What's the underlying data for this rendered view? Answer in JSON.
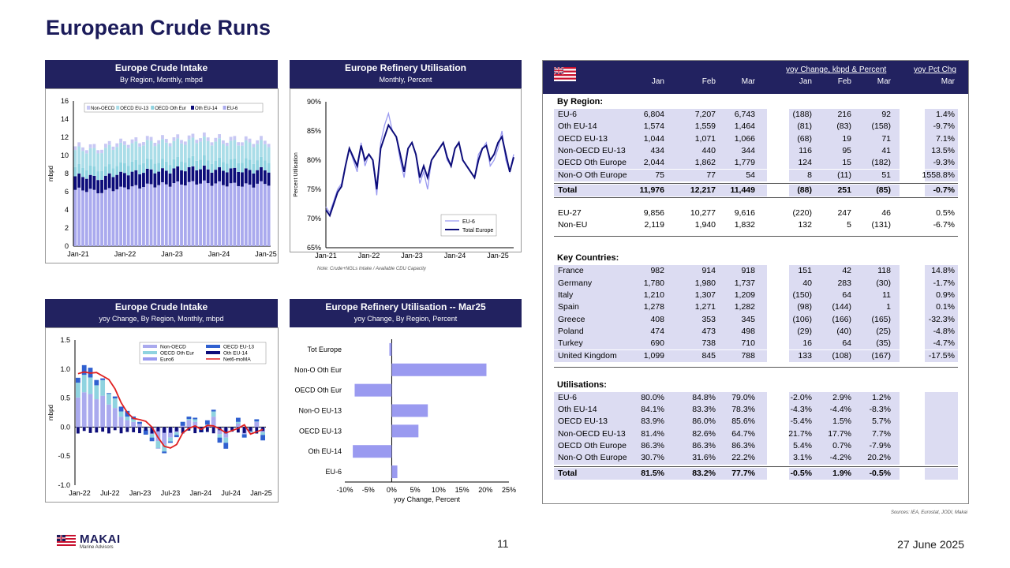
{
  "page": {
    "title": "European Crude Runs",
    "page_number": "11",
    "date": "27 June 2025",
    "sources": "Sources: IEA, Eurostat, JODI, Makai",
    "logo_name": "MAKAI",
    "logo_sub": "Marine Advisors"
  },
  "colors": {
    "navy": "#222260",
    "series_light": "#aaaaee",
    "series_teal": "#8fd3e0",
    "series_dark": "#0d0d7a",
    "series_red": "#e02020",
    "bar_lavender": "#9a9af0"
  },
  "chart_data": [
    {
      "type": "area",
      "title": "Europe Crude Intake",
      "subtitle": "By Region, Monthly, mbpd",
      "ylabel": "mbpd",
      "ylim": [
        0,
        16
      ],
      "yticks": [
        "0",
        "2",
        "4",
        "6",
        "8",
        "10",
        "12",
        "14",
        "16"
      ],
      "xticks": [
        "Jan-21",
        "Jan-22",
        "Jan-23",
        "Jan-24",
        "Jan-25"
      ],
      "legend": [
        "Non-OECD",
        "OECD EU-13",
        "OECD Oth Eur",
        "Oth EU-14",
        "EU-6"
      ],
      "series": [
        {
          "name": "EU-6",
          "values": [
            6.2,
            6.0,
            6.3,
            6.5,
            6.7,
            6.8,
            6.9,
            7.0,
            6.9,
            6.8,
            6.7,
            6.9
          ]
        },
        {
          "name": "Oth EU-14",
          "values": [
            1.5,
            1.5,
            1.6,
            1.6,
            1.6,
            1.5,
            1.6,
            1.6,
            1.5,
            1.6,
            1.6,
            1.5
          ]
        },
        {
          "name": "OECD EU-13",
          "values": [
            1.0,
            1.0,
            1.0,
            1.1,
            1.1,
            1.0,
            1.0,
            1.1,
            1.0,
            1.0,
            1.1,
            1.1
          ]
        },
        {
          "name": "OECD Oth Eur",
          "values": [
            1.9,
            2.0,
            2.1,
            2.0,
            2.0,
            2.1,
            2.0,
            2.0,
            2.1,
            2.0,
            1.9,
            1.8
          ]
        },
        {
          "name": "Non-OECD",
          "values": [
            0.4,
            0.4,
            0.4,
            0.4,
            0.4,
            0.4,
            0.4,
            0.4,
            0.4,
            0.4,
            0.4,
            0.4
          ]
        }
      ]
    },
    {
      "type": "line",
      "title": "Europe Refinery Utilisation",
      "subtitle": "Monthly, Percent",
      "ylabel": "Percent Utilisation",
      "ylim": [
        65,
        90
      ],
      "yticks": [
        "65%",
        "70%",
        "75%",
        "80%",
        "85%",
        "90%"
      ],
      "xticks": [
        "Jan-21",
        "Jan-22",
        "Jan-23",
        "Jan-24",
        "Jan-25"
      ],
      "note": "Note: Crude+NGLs Intake / Available CDU Capacity",
      "legend": [
        "EU-6",
        "Total Europe"
      ],
      "series": [
        {
          "name": "EU-6",
          "values": [
            72,
            71,
            73,
            75,
            76,
            79,
            82,
            80,
            78,
            83,
            79,
            81,
            80,
            74,
            83,
            86,
            88,
            85,
            84,
            80,
            77,
            82,
            83,
            81,
            76,
            78,
            75,
            80,
            81,
            82,
            83,
            80,
            79,
            82,
            83,
            80,
            79,
            78,
            77,
            81,
            82,
            83,
            79,
            80,
            82,
            85,
            80,
            78,
            81
          ]
        },
        {
          "name": "Total Europe",
          "values": [
            71.5,
            70.5,
            72.5,
            74.5,
            75.5,
            79,
            82,
            80.5,
            79,
            82.5,
            80,
            81,
            80,
            75,
            82,
            84,
            86,
            85,
            84,
            81,
            78,
            82,
            83,
            81,
            77,
            79,
            77,
            80,
            81,
            82,
            83,
            80.5,
            79,
            82,
            83,
            80,
            79,
            78,
            77,
            80,
            82,
            82.5,
            80,
            81,
            83,
            84,
            81,
            78,
            80.5
          ]
        }
      ]
    },
    {
      "type": "bar",
      "title": "Europe Crude Intake",
      "subtitle": "yoy Change, By Region, Monthly, mbpd",
      "ylabel": "mbpd",
      "ylim": [
        -1.0,
        1.5
      ],
      "yticks": [
        "-1.0",
        "-0.5",
        "0.0",
        "0.5",
        "1.0",
        "1.5"
      ],
      "xticks": [
        "Jan-22",
        "Jul-22",
        "Jan-23",
        "Jul-23",
        "Jan-24",
        "Jul-24",
        "Jan-25"
      ],
      "legend": [
        "Non-OECD",
        "OECD EU-13",
        "OECD Oth Eur",
        "Oth EU-14",
        "Euro6",
        "Net6-moMA"
      ],
      "series": [
        {
          "name": "Net6-moMA",
          "values": [
            0.92,
            0.95,
            0.93,
            0.94,
            0.88,
            0.82,
            0.66,
            0.42,
            0.25,
            0.15,
            0.13,
            0.1,
            0.0,
            -0.18,
            -0.33,
            -0.36,
            -0.3,
            -0.1,
            -0.02,
            0.02,
            -0.04,
            0.03,
            0.02,
            -0.03,
            -0.1,
            -0.06,
            -0.02,
            0.04,
            -0.12,
            -0.08,
            -0.04
          ]
        },
        {
          "name": "Total bar",
          "values": [
            0.85,
            1.0,
            0.95,
            0.8,
            0.9,
            0.65,
            0.55,
            0.3,
            0.2,
            0.15,
            0.1,
            -0.05,
            -0.2,
            -0.4,
            -0.5,
            -0.3,
            -0.15,
            0.1,
            0.2,
            0.15,
            -0.1,
            0.05,
            0.3,
            -0.2,
            -0.3,
            0.0,
            0.1,
            -0.2,
            -0.1,
            0.15,
            -0.15
          ]
        }
      ]
    },
    {
      "type": "bar",
      "title": "Europe Refinery Utilisation -- Mar25",
      "subtitle": "yoy Change, By Region, Percent",
      "xlabel": "yoy Change, Percent",
      "xlim": [
        -10,
        25
      ],
      "xticks": [
        "-10%",
        "-5%",
        "0%",
        "5%",
        "10%",
        "15%",
        "20%",
        "25%"
      ],
      "categories": [
        "Tot Europe",
        "Non-O Oth Eur",
        "OECD Oth Eur",
        "Non-OECD EU-13",
        "OECD EU-13",
        "Oth EU-14",
        "EU-6"
      ],
      "category_labels": [
        "Tot Europe",
        "Non-O Oth Eur",
        "OECD Oth Eur",
        "Non-O EU-13",
        "OECD EU-13",
        "Oth EU-14",
        "EU-6"
      ],
      "values": [
        -0.5,
        20.2,
        -7.9,
        7.7,
        5.7,
        -8.3,
        1.2
      ]
    }
  ],
  "table": {
    "header_group": "yoy Change, kbpd & Percent",
    "header_pct": "yoy Pct Chg",
    "columns": [
      "Jan",
      "Feb",
      "Mar",
      "Jan",
      "Feb",
      "Mar",
      "Mar"
    ],
    "region_title": "By Region:",
    "regions": [
      [
        "EU-6",
        "6,804",
        "7,207",
        "6,743",
        "(188)",
        "216",
        "92",
        "1.4%"
      ],
      [
        "Oth EU-14",
        "1,574",
        "1,559",
        "1,464",
        "(81)",
        "(83)",
        "(158)",
        "-9.7%"
      ],
      [
        "OECD EU-13",
        "1,044",
        "1,071",
        "1,066",
        "(68)",
        "19",
        "71",
        "7.1%"
      ],
      [
        "Non-OECD EU-13",
        "434",
        "440",
        "344",
        "116",
        "95",
        "41",
        "13.5%"
      ],
      [
        "OECD Oth Europe",
        "2,044",
        "1,862",
        "1,779",
        "124",
        "15",
        "(182)",
        "-9.3%"
      ],
      [
        "Non-O Oth Europe",
        "75",
        "77",
        "54",
        "8",
        "(11)",
        "51",
        "1558.8%"
      ]
    ],
    "total": [
      "Total",
      "11,976",
      "12,217",
      "11,449",
      "(88)",
      "251",
      "(85)",
      "-0.7%"
    ],
    "eu_split": [
      [
        "EU-27",
        "9,856",
        "10,277",
        "9,616",
        "(220)",
        "247",
        "46",
        "0.5%"
      ],
      [
        "Non-EU",
        "2,119",
        "1,940",
        "1,832",
        "132",
        "5",
        "(131)",
        "-6.7%"
      ]
    ],
    "countries_title": "Key Countries:",
    "countries": [
      [
        "France",
        "982",
        "914",
        "918",
        "151",
        "42",
        "118",
        "14.8%"
      ],
      [
        "Germany",
        "1,780",
        "1,980",
        "1,737",
        "40",
        "283",
        "(30)",
        "-1.7%"
      ],
      [
        "Italy",
        "1,210",
        "1,307",
        "1,209",
        "(150)",
        "64",
        "11",
        "0.9%"
      ],
      [
        "Spain",
        "1,278",
        "1,271",
        "1,282",
        "(98)",
        "(144)",
        "1",
        "0.1%"
      ],
      [
        "Greece",
        "408",
        "353",
        "345",
        "(106)",
        "(166)",
        "(165)",
        "-32.3%"
      ],
      [
        "Poland",
        "474",
        "473",
        "498",
        "(29)",
        "(40)",
        "(25)",
        "-4.8%"
      ],
      [
        "Turkey",
        "690",
        "738",
        "710",
        "16",
        "64",
        "(35)",
        "-4.7%"
      ],
      [
        "United Kingdom",
        "1,099",
        "845",
        "788",
        "133",
        "(108)",
        "(167)",
        "-17.5%"
      ]
    ],
    "util_title": "Utilisations:",
    "utilisations": [
      [
        "EU-6",
        "80.0%",
        "84.8%",
        "79.0%",
        "-2.0%",
        "2.9%",
        "1.2%"
      ],
      [
        "Oth EU-14",
        "84.1%",
        "83.3%",
        "78.3%",
        "-4.3%",
        "-4.4%",
        "-8.3%"
      ],
      [
        "OECD EU-13",
        "83.9%",
        "86.0%",
        "85.6%",
        "-5.4%",
        "1.5%",
        "5.7%"
      ],
      [
        "Non-OECD EU-13",
        "81.4%",
        "82.6%",
        "64.7%",
        "21.7%",
        "17.7%",
        "7.7%"
      ],
      [
        "OECD Oth Europe",
        "86.3%",
        "86.3%",
        "86.3%",
        "5.4%",
        "0.7%",
        "-7.9%"
      ],
      [
        "Non-O Oth Europe",
        "30.7%",
        "31.6%",
        "22.2%",
        "3.1%",
        "-4.2%",
        "20.2%"
      ]
    ],
    "util_total": [
      "Total",
      "81.5%",
      "83.2%",
      "77.7%",
      "-0.5%",
      "1.9%",
      "-0.5%"
    ]
  }
}
